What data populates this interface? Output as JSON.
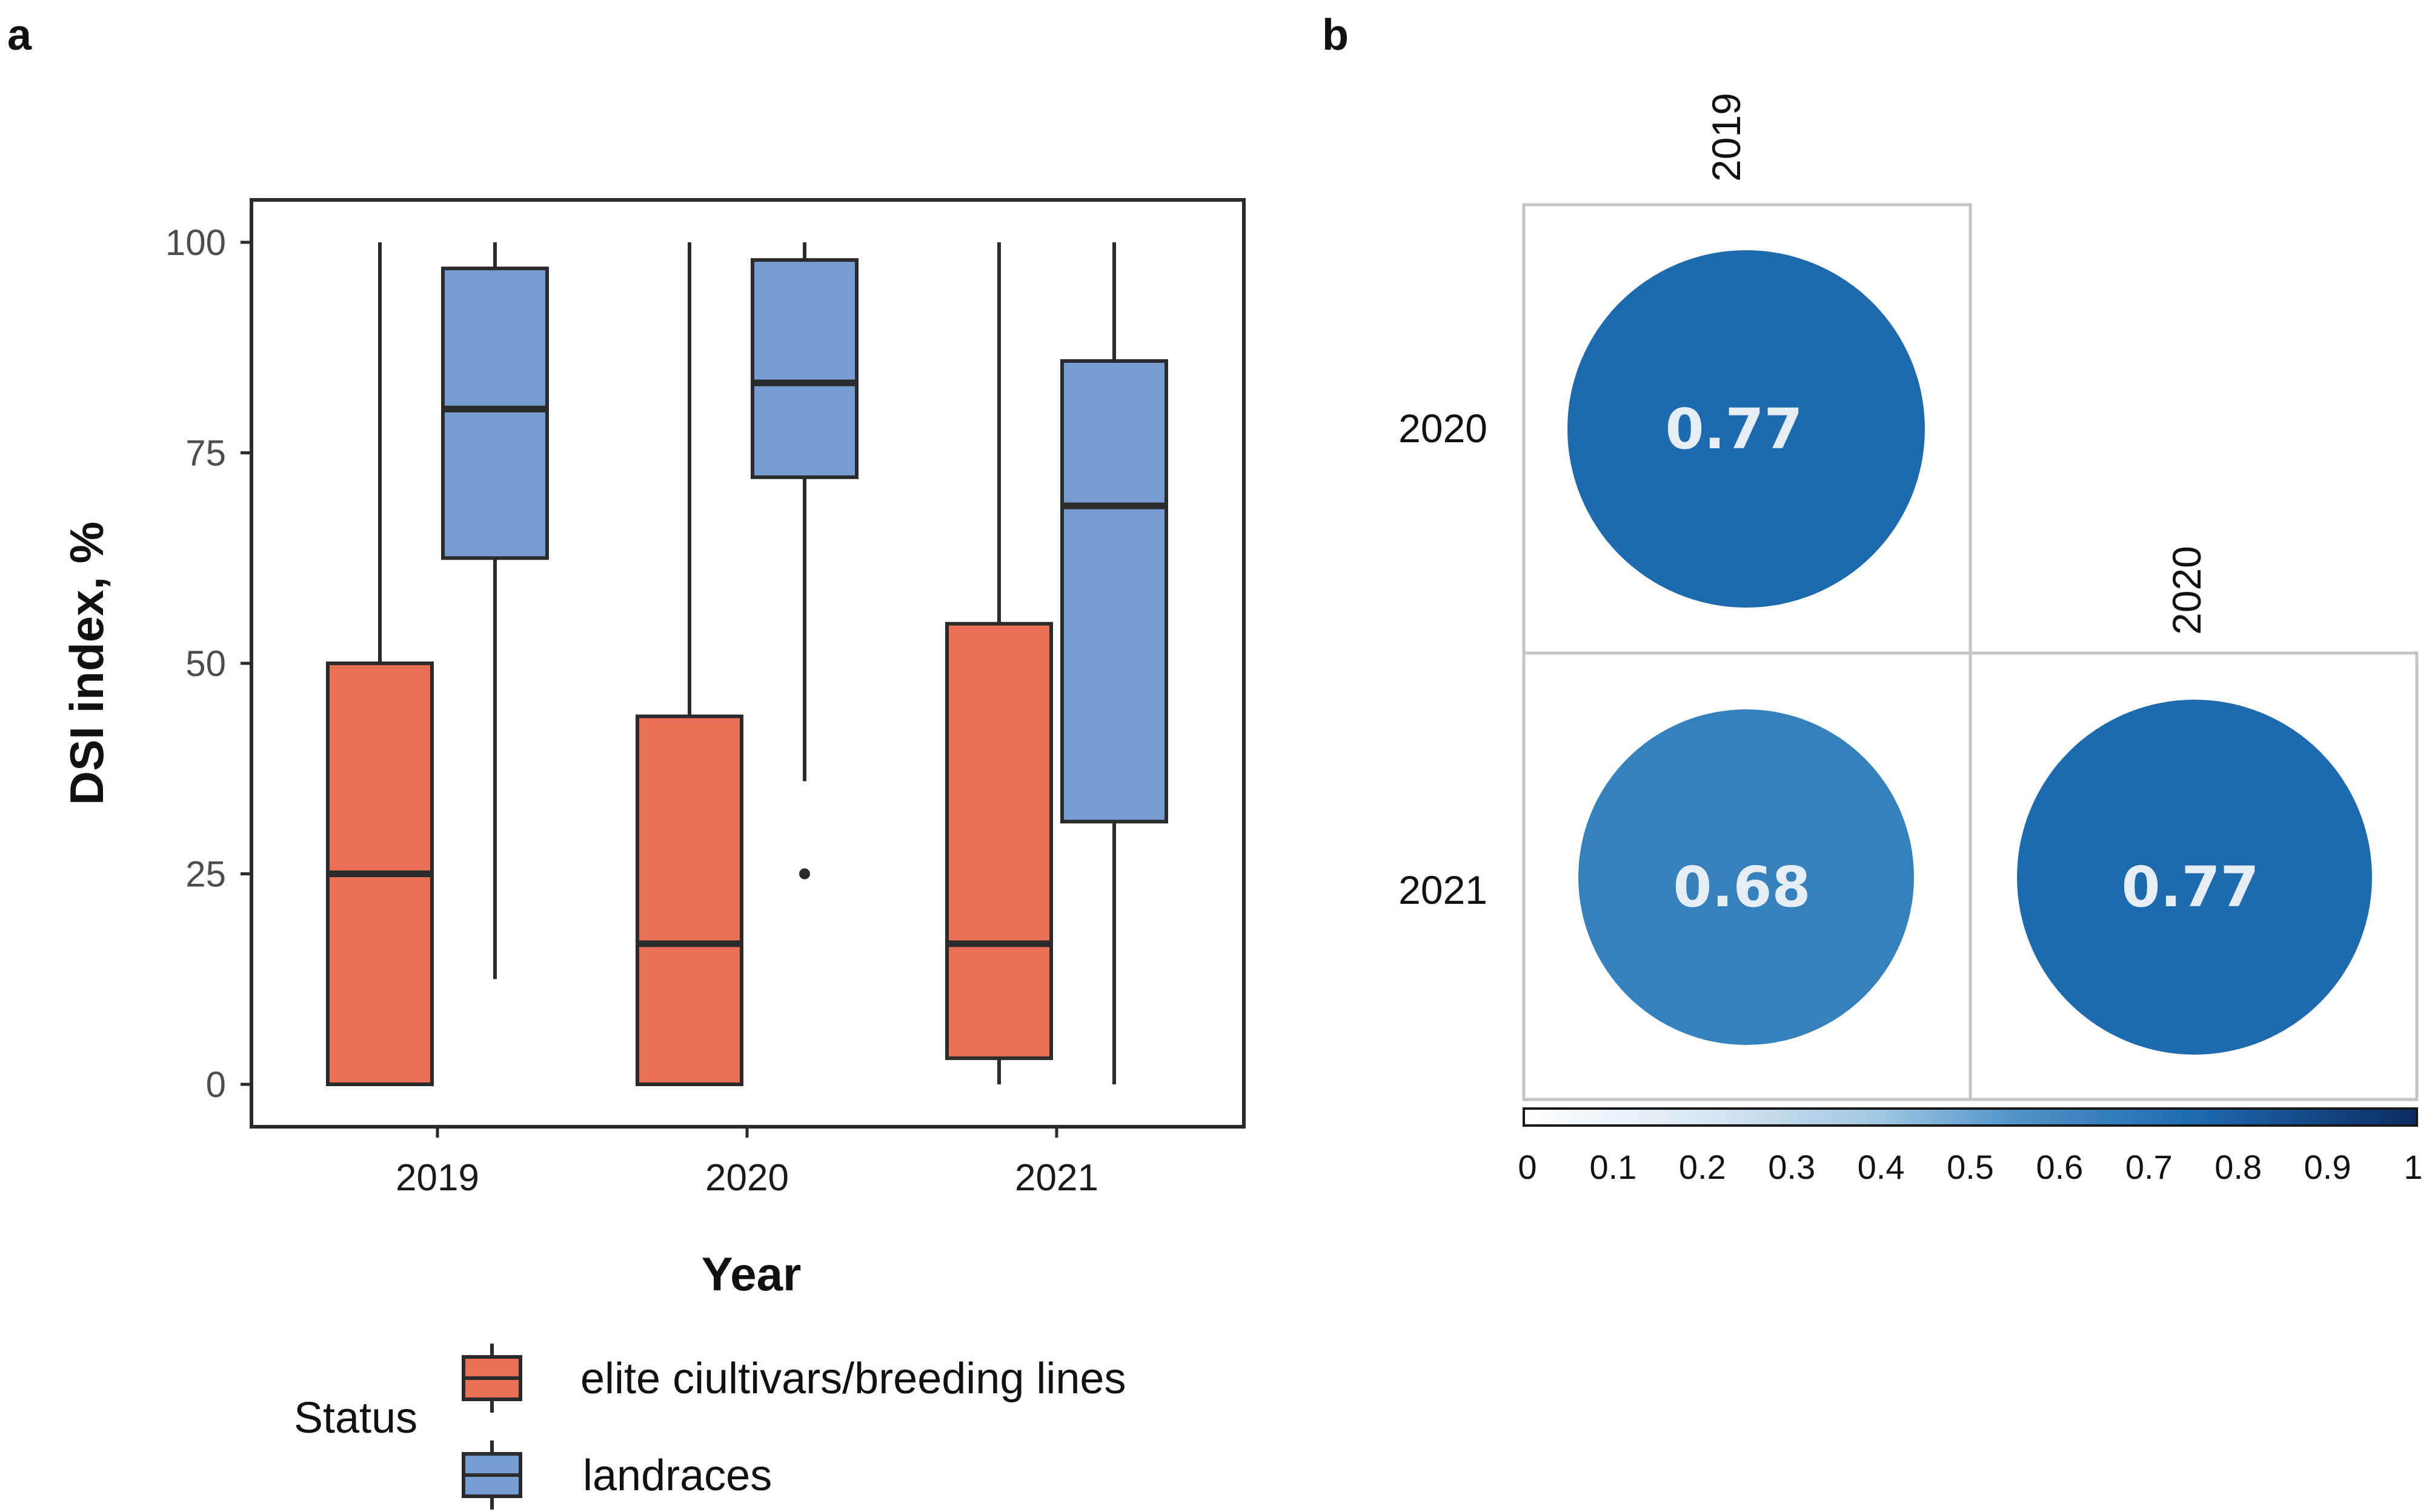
{
  "panels": {
    "a_label": "a",
    "b_label": "b"
  },
  "chart_data": [
    {
      "type": "box",
      "panel": "a",
      "title": "",
      "xlabel": "Year",
      "ylabel": "DSI index, %",
      "ylim": [
        0,
        100
      ],
      "yticks": [
        0,
        25,
        50,
        75,
        100
      ],
      "categories": [
        "2019",
        "2020",
        "2021"
      ],
      "legend_title": "Status",
      "legend_position": "bottom",
      "series": [
        {
          "name": "elite ciultivars/breeding lines",
          "color": "#EB6F55",
          "boxes": [
            {
              "min": 0,
              "q1": 0,
              "median": 25,
              "q3": 50,
              "max": 100,
              "outliers": []
            },
            {
              "min": 0,
              "q1": 0,
              "median": 16.7,
              "q3": 43.7,
              "max": 100,
              "outliers": []
            },
            {
              "min": 0,
              "q1": 3.1,
              "median": 16.7,
              "q3": 54.7,
              "max": 100,
              "outliers": []
            }
          ]
        },
        {
          "name": "landraces",
          "color": "#769DD1",
          "boxes": [
            {
              "min": 12.5,
              "q1": 62.5,
              "median": 80.2,
              "q3": 96.9,
              "max": 100,
              "outliers": []
            },
            {
              "min": 36,
              "q1": 72.1,
              "median": 83.3,
              "q3": 97.9,
              "max": 100,
              "outliers": [
                25
              ]
            },
            {
              "min": 0,
              "q1": 31.2,
              "median": 68.7,
              "q3": 85.9,
              "max": 100,
              "outliers": []
            }
          ]
        }
      ]
    },
    {
      "type": "correlogram",
      "panel": "b",
      "title": "",
      "column_labels": [
        "2019",
        "2020"
      ],
      "row_labels": [
        "2020",
        "2021"
      ],
      "cells": [
        {
          "row": "2020",
          "col": "2019",
          "value": 0.77,
          "label": "0.77"
        },
        {
          "row": "2021",
          "col": "2019",
          "value": 0.68,
          "label": "0.68"
        },
        {
          "row": "2021",
          "col": "2020",
          "value": 0.77,
          "label": "0.77"
        }
      ],
      "colorbar": {
        "range": [
          0,
          1
        ],
        "ticks": [
          "0",
          "0.1",
          "0.2",
          "0.3",
          "0.4",
          "0.5",
          "0.6",
          "0.7",
          "0.8",
          "0.9",
          "1"
        ],
        "color_low": "#FFFFFF",
        "color_high": "#0B2B63"
      },
      "circle_colors": {
        "0.77": "#1E6AAF",
        "0.68": "#3481BD"
      }
    }
  ]
}
